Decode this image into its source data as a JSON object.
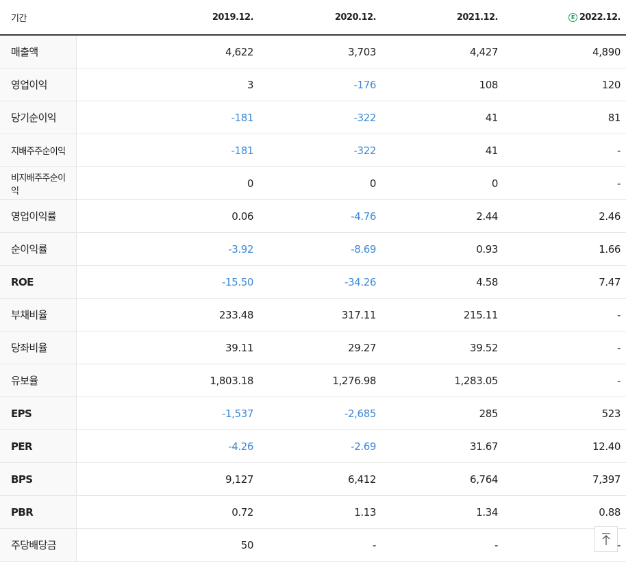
{
  "header": {
    "period_label": "기간",
    "periods": [
      "2019.12.",
      "2020.12.",
      "2021.12.",
      "2022.12."
    ],
    "estimate_badge": "E"
  },
  "rows": [
    {
      "label": "매출액",
      "values": [
        "4,622",
        "3,703",
        "4,427",
        "4,890"
      ]
    },
    {
      "label": "영업이익",
      "values": [
        "3",
        "-176",
        "108",
        "120"
      ]
    },
    {
      "label": "당기순이익",
      "values": [
        "-181",
        "-322",
        "41",
        "81"
      ]
    },
    {
      "label": "지배주주순이익",
      "values": [
        "-181",
        "-322",
        "41",
        "-"
      ]
    },
    {
      "label": "비지배주주순이익",
      "values": [
        "0",
        "0",
        "0",
        "-"
      ]
    },
    {
      "label": "영업이익률",
      "values": [
        "0.06",
        "-4.76",
        "2.44",
        "2.46"
      ]
    },
    {
      "label": "순이익률",
      "values": [
        "-3.92",
        "-8.69",
        "0.93",
        "1.66"
      ]
    },
    {
      "label": "ROE",
      "values": [
        "-15.50",
        "-34.26",
        "4.58",
        "7.47"
      ]
    },
    {
      "label": "부채비율",
      "values": [
        "233.48",
        "317.11",
        "215.11",
        "-"
      ]
    },
    {
      "label": "당좌비율",
      "values": [
        "39.11",
        "29.27",
        "39.52",
        "-"
      ]
    },
    {
      "label": "유보율",
      "values": [
        "1,803.18",
        "1,276.98",
        "1,283.05",
        "-"
      ]
    },
    {
      "label": "EPS",
      "values": [
        "-1,537",
        "-2,685",
        "285",
        "523"
      ]
    },
    {
      "label": "PER",
      "values": [
        "-4.26",
        "-2.69",
        "31.67",
        "12.40"
      ]
    },
    {
      "label": "BPS",
      "values": [
        "9,127",
        "6,412",
        "6,764",
        "7,397"
      ]
    },
    {
      "label": "PBR",
      "values": [
        "0.72",
        "1.13",
        "1.34",
        "0.88"
      ]
    },
    {
      "label": "주당배당금",
      "values": [
        "50",
        "-",
        "-",
        "-"
      ]
    }
  ],
  "colors": {
    "negative": "#3d89d6",
    "estimate_badge": "#1a9c5a",
    "label_bg": "#f9f9f9"
  },
  "scroll_top_icon": "arrow-up-to-line-icon"
}
